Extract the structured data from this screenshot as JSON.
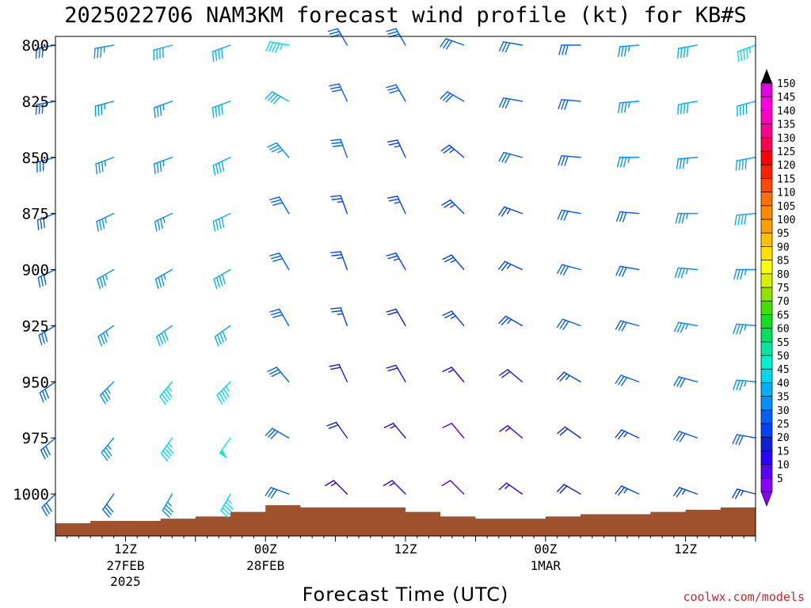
{
  "chart_data": {
    "type": "wind_barbs",
    "title": "2025022706 NAM3KM forecast wind profile (kt) for KB#S",
    "xlabel": "Forecast Time (UTC)",
    "credit": "coolwx.com/models",
    "y_ticks": [
      800,
      825,
      850,
      875,
      900,
      925,
      950,
      975,
      1000
    ],
    "y_axis": {
      "min": 800,
      "max": 1019,
      "unit": "hPa"
    },
    "x_ticks": [
      {
        "hour": 12,
        "label": "12Z",
        "label2": "27FEB",
        "label3": "2025"
      },
      {
        "hour": 24,
        "label": "00Z",
        "label2": "28FEB",
        "label3": ""
      },
      {
        "hour": 36,
        "label": "12Z",
        "label2": "",
        "label3": ""
      },
      {
        "hour": 48,
        "label": "00Z",
        "label2": "1MAR",
        "label3": ""
      },
      {
        "hour": 60,
        "label": "12Z",
        "label2": "",
        "label3": ""
      }
    ],
    "x_axis": {
      "start_hour": 6,
      "end_hour": 66,
      "step_hours": 1,
      "note": "hours after 2025-02-27 00Z"
    },
    "colorbar": {
      "levels": [
        5,
        10,
        15,
        20,
        25,
        30,
        35,
        40,
        45,
        50,
        55,
        60,
        65,
        70,
        75,
        80,
        85,
        90,
        95,
        100,
        105,
        110,
        115,
        120,
        125,
        130,
        135,
        140,
        145,
        150
      ],
      "colors": [
        "#8a00ff",
        "#5a00ff",
        "#2a00ff",
        "#1020d0",
        "#0040ff",
        "#0060ff",
        "#0090ff",
        "#00b0ff",
        "#00d8f0",
        "#00f0d0",
        "#00e8a0",
        "#00e060",
        "#10e020",
        "#40e000",
        "#90e000",
        "#d8f000",
        "#ffff00",
        "#ffe000",
        "#ffc000",
        "#ffa000",
        "#ff8a00",
        "#ff7000",
        "#ff4800",
        "#ff2000",
        "#ff0000",
        "#ff0050",
        "#ff0090",
        "#ff00c0",
        "#ff00e0",
        "#e000e0"
      ]
    },
    "terrain": {
      "hours": [
        6,
        9,
        12,
        15,
        18,
        21,
        24,
        27,
        30,
        33,
        36,
        39,
        42,
        45,
        48,
        51,
        54,
        57,
        60,
        63,
        66
      ],
      "surface_pressure": [
        1013,
        1012,
        1012,
        1011,
        1010,
        1008,
        1005,
        1006,
        1006,
        1006,
        1008,
        1010,
        1011,
        1011,
        1010,
        1009,
        1009,
        1008,
        1007,
        1006,
        1004
      ]
    },
    "wind_hours": [
      6,
      11,
      16,
      21,
      26,
      31,
      36,
      41,
      46,
      51,
      56,
      61,
      66
    ],
    "wind_levels": [
      800,
      825,
      850,
      875,
      900,
      925,
      950,
      975,
      1000
    ],
    "wind_dir_deg": [
      [
        260,
        260,
        255,
        250,
        280,
        330,
        330,
        290,
        280,
        270,
        265,
        260,
        250
      ],
      [
        260,
        255,
        250,
        250,
        300,
        335,
        330,
        300,
        280,
        275,
        265,
        260,
        255
      ],
      [
        255,
        250,
        250,
        245,
        320,
        340,
        335,
        310,
        285,
        275,
        270,
        265,
        260
      ],
      [
        250,
        245,
        245,
        245,
        330,
        340,
        335,
        315,
        290,
        280,
        275,
        270,
        265
      ],
      [
        245,
        240,
        240,
        240,
        330,
        340,
        330,
        320,
        295,
        285,
        280,
        275,
        270
      ],
      [
        240,
        235,
        235,
        235,
        330,
        340,
        330,
        320,
        300,
        290,
        285,
        280,
        275
      ],
      [
        235,
        225,
        220,
        225,
        320,
        335,
        330,
        320,
        310,
        300,
        290,
        285,
        275
      ],
      [
        230,
        220,
        215,
        215,
        300,
        325,
        320,
        320,
        310,
        305,
        295,
        290,
        280
      ],
      [
        225,
        215,
        210,
        210,
        290,
        315,
        315,
        315,
        305,
        300,
        295,
        290,
        285
      ]
    ],
    "wind_speed_kt": [
      [
        30,
        35,
        40,
        40,
        45,
        30,
        30,
        30,
        30,
        30,
        35,
        40,
        45
      ],
      [
        30,
        35,
        35,
        40,
        40,
        30,
        30,
        30,
        30,
        30,
        35,
        40,
        40
      ],
      [
        30,
        35,
        35,
        40,
        35,
        30,
        25,
        25,
        30,
        30,
        35,
        35,
        40
      ],
      [
        30,
        35,
        35,
        40,
        30,
        25,
        25,
        25,
        25,
        30,
        30,
        35,
        40
      ],
      [
        30,
        35,
        35,
        40,
        30,
        25,
        25,
        25,
        25,
        30,
        30,
        35,
        35
      ],
      [
        30,
        35,
        40,
        40,
        30,
        25,
        20,
        25,
        25,
        30,
        30,
        35,
        35
      ],
      [
        30,
        35,
        45,
        45,
        30,
        20,
        20,
        15,
        20,
        25,
        30,
        30,
        35
      ],
      [
        30,
        35,
        45,
        50,
        30,
        20,
        15,
        10,
        15,
        20,
        25,
        30,
        30
      ],
      [
        30,
        30,
        35,
        45,
        30,
        15,
        15,
        10,
        15,
        20,
        25,
        25,
        25
      ]
    ]
  }
}
